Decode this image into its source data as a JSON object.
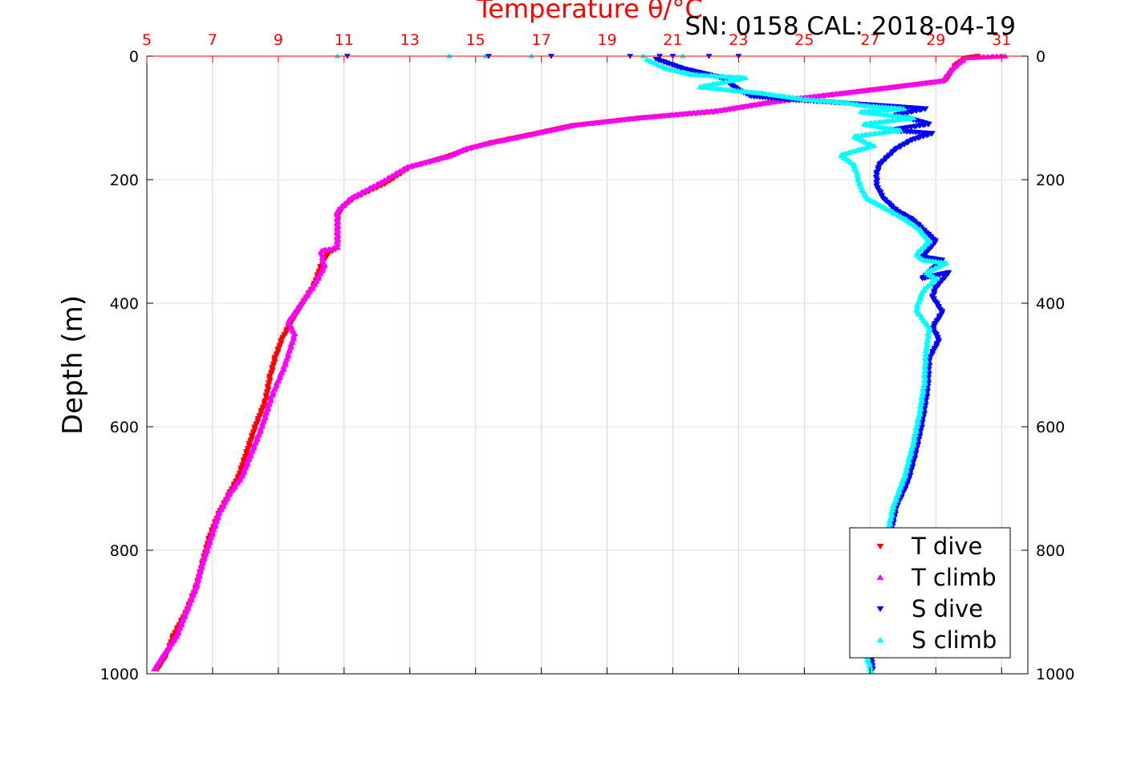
{
  "chart_data": {
    "type": "scatter",
    "title": "Temperature θ/°C",
    "subtitle": "SN: 0158  CAL: 2018-04-19",
    "ylabel": "Depth (m)",
    "x_ticks": [
      "5",
      "7",
      "9",
      "11",
      "13",
      "15",
      "17",
      "19",
      "21",
      "23",
      "25",
      "27",
      "29",
      "31"
    ],
    "y_ticks": [
      "0",
      "200",
      "400",
      "600",
      "800",
      "1000"
    ],
    "xlim": [
      5,
      31.8
    ],
    "ylim": [
      0,
      1000
    ],
    "y_reversed": true,
    "grid": true,
    "legend_position": "bottom-right",
    "colors": {
      "t_dive": "#ff0000",
      "t_climb": "#ff00ff",
      "s_dive": "#0000ff",
      "s_climb": "#00ffff",
      "axis_top": "#ff0000"
    },
    "series": [
      {
        "name": "T dive",
        "marker": "triangle-down",
        "points": [
          [
            30.3,
            0
          ],
          [
            29.9,
            3
          ],
          [
            29.6,
            15
          ],
          [
            29.3,
            40
          ],
          [
            27,
            55
          ],
          [
            24,
            75
          ],
          [
            22.3,
            90
          ],
          [
            20,
            100
          ],
          [
            18,
            112
          ],
          [
            16.6,
            128
          ],
          [
            15.5,
            140
          ],
          [
            14.8,
            150
          ],
          [
            14.2,
            162
          ],
          [
            13,
            180
          ],
          [
            12.3,
            205
          ],
          [
            11.3,
            230
          ],
          [
            10.9,
            248
          ],
          [
            10.8,
            260
          ],
          [
            10.8,
            310
          ],
          [
            10.5,
            320
          ],
          [
            10.3,
            340
          ],
          [
            10.1,
            370
          ],
          [
            9.8,
            395
          ],
          [
            9.4,
            430
          ],
          [
            9.1,
            460
          ],
          [
            8.9,
            490
          ],
          [
            8.75,
            520
          ],
          [
            8.6,
            560
          ],
          [
            8.3,
            600
          ],
          [
            8.05,
            640
          ],
          [
            7.8,
            680
          ],
          [
            7.5,
            710
          ],
          [
            7.2,
            740
          ],
          [
            6.9,
            780
          ],
          [
            6.7,
            820
          ],
          [
            6.5,
            860
          ],
          [
            6.2,
            900
          ],
          [
            5.8,
            940
          ],
          [
            5.6,
            970
          ],
          [
            5.3,
            995
          ]
        ]
      },
      {
        "name": "T climb",
        "marker": "triangle-up",
        "points": [
          [
            31.1,
            0
          ],
          [
            29.9,
            3
          ],
          [
            29.5,
            20
          ],
          [
            29.2,
            40
          ],
          [
            27,
            55
          ],
          [
            24.5,
            70
          ],
          [
            22.4,
            88
          ],
          [
            20,
            100
          ],
          [
            18,
            112
          ],
          [
            16.6,
            128
          ],
          [
            15.5,
            140
          ],
          [
            14.7,
            150
          ],
          [
            14.2,
            162
          ],
          [
            12.9,
            180
          ],
          [
            12.1,
            205
          ],
          [
            11.2,
            230
          ],
          [
            10.8,
            250
          ],
          [
            10.8,
            260
          ],
          [
            10.8,
            310
          ],
          [
            10.3,
            315
          ],
          [
            10.4,
            340
          ],
          [
            10.1,
            370
          ],
          [
            9.7,
            400
          ],
          [
            9.3,
            430
          ],
          [
            9.5,
            450
          ],
          [
            9.2,
            500
          ],
          [
            8.8,
            550
          ],
          [
            8.5,
            600
          ],
          [
            8.2,
            640
          ],
          [
            7.9,
            680
          ],
          [
            7.5,
            710
          ],
          [
            7.2,
            740
          ],
          [
            6.95,
            780
          ],
          [
            6.7,
            820
          ],
          [
            6.5,
            860
          ],
          [
            6.2,
            900
          ],
          [
            5.9,
            940
          ],
          [
            5.5,
            970
          ],
          [
            5.2,
            995
          ]
        ]
      },
      {
        "name": "S dive",
        "marker": "triangle-down",
        "points": [
          [
            20.5,
            5
          ],
          [
            21.3,
            20
          ],
          [
            22.5,
            35
          ],
          [
            23,
            55
          ],
          [
            23.4,
            65
          ],
          [
            24.5,
            70
          ],
          [
            26,
            75
          ],
          [
            28.7,
            85
          ],
          [
            27.8,
            95
          ],
          [
            28.8,
            110
          ],
          [
            27.6,
            120
          ],
          [
            28.9,
            125
          ],
          [
            28.3,
            135
          ],
          [
            27.8,
            150
          ],
          [
            27.6,
            160
          ],
          [
            27.3,
            175
          ],
          [
            27.2,
            190
          ],
          [
            27.2,
            210
          ],
          [
            27.4,
            230
          ],
          [
            27.8,
            250
          ],
          [
            28.3,
            265
          ],
          [
            28.6,
            280
          ],
          [
            29,
            300
          ],
          [
            28.6,
            325
          ],
          [
            29.2,
            330
          ],
          [
            28.9,
            345
          ],
          [
            28.6,
            360
          ],
          [
            29.4,
            350
          ],
          [
            29,
            375
          ],
          [
            28.9,
            390
          ],
          [
            29.2,
            415
          ],
          [
            28.9,
            440
          ],
          [
            29.1,
            460
          ],
          [
            28.8,
            490
          ],
          [
            28.75,
            540
          ],
          [
            28.6,
            590
          ],
          [
            28.4,
            640
          ],
          [
            28.15,
            690
          ],
          [
            27.8,
            730
          ],
          [
            27.6,
            780
          ],
          [
            27.4,
            830
          ],
          [
            27.3,
            880
          ],
          [
            27.1,
            930
          ],
          [
            27,
            970
          ],
          [
            27.1,
            995
          ]
        ]
      },
      {
        "name": "S climb",
        "marker": "triangle-up",
        "points": [
          [
            20.2,
            5
          ],
          [
            20.8,
            20
          ],
          [
            21.6,
            30
          ],
          [
            23.2,
            35
          ],
          [
            21.8,
            50
          ],
          [
            23.7,
            60
          ],
          [
            25,
            70
          ],
          [
            26.2,
            75
          ],
          [
            26.8,
            80
          ],
          [
            28,
            85
          ],
          [
            26.7,
            90
          ],
          [
            28.3,
            100
          ],
          [
            26.8,
            110
          ],
          [
            27.9,
            120
          ],
          [
            26.5,
            130
          ],
          [
            27.1,
            145
          ],
          [
            26.1,
            160
          ],
          [
            26.5,
            175
          ],
          [
            26.6,
            190
          ],
          [
            26.7,
            210
          ],
          [
            26.9,
            230
          ],
          [
            27.6,
            250
          ],
          [
            28.1,
            265
          ],
          [
            28.5,
            280
          ],
          [
            28.8,
            300
          ],
          [
            28.4,
            320
          ],
          [
            28.6,
            330
          ],
          [
            29.3,
            335
          ],
          [
            28.7,
            350
          ],
          [
            29,
            360
          ],
          [
            28.6,
            380
          ],
          [
            28.4,
            410
          ],
          [
            28.8,
            440
          ],
          [
            28.7,
            480
          ],
          [
            28.65,
            530
          ],
          [
            28.5,
            580
          ],
          [
            28.3,
            630
          ],
          [
            28.05,
            680
          ],
          [
            27.7,
            730
          ],
          [
            27.5,
            780
          ],
          [
            27.3,
            830
          ],
          [
            27.2,
            880
          ],
          [
            27.05,
            930
          ],
          [
            26.9,
            970
          ],
          [
            27.05,
            998
          ]
        ]
      }
    ],
    "scatter_points": [
      [
        10.8,
        0
      ],
      [
        11.1,
        0
      ],
      [
        14.2,
        0
      ],
      [
        15.3,
        0
      ],
      [
        15.4,
        0
      ],
      [
        16.7,
        0
      ],
      [
        17.3,
        0
      ],
      [
        19.7,
        0
      ],
      [
        20.1,
        0
      ],
      [
        20.6,
        0
      ],
      [
        21,
        0
      ],
      [
        21.3,
        0
      ],
      [
        22.1,
        0
      ],
      [
        23,
        0
      ]
    ],
    "scatter_series": [
      "S climb",
      "S dive",
      "S climb",
      "S climb",
      "S dive",
      "S climb",
      "S dive",
      "S dive",
      "S climb",
      "S dive",
      "S dive",
      "S climb",
      "S dive",
      "S dive"
    ]
  }
}
